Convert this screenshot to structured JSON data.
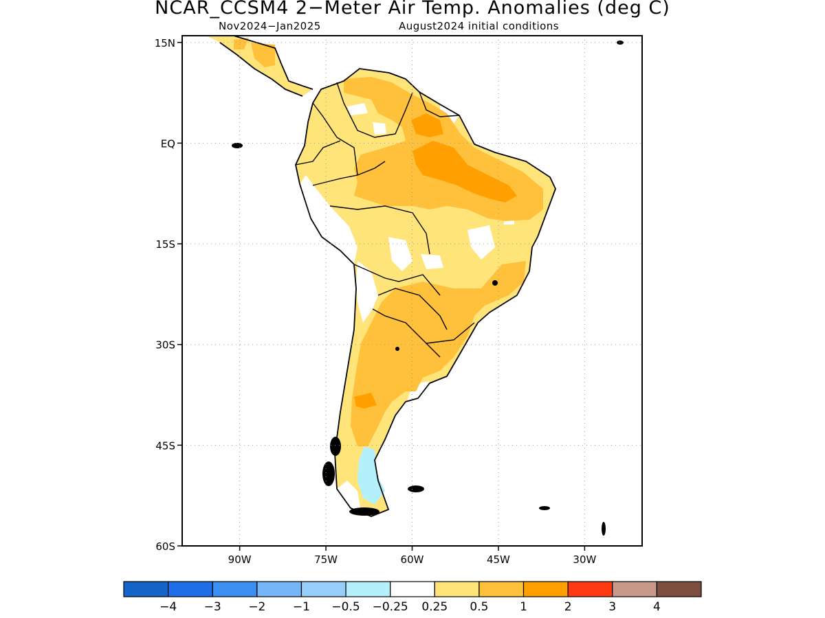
{
  "title": "NCAR_CCSM4 2−Meter Air Temp. Anomalies (deg C)",
  "subtitle_left": "Nov2024−Jan2025",
  "subtitle_right": "August2024 initial conditions",
  "lat_ticks": [
    {
      "value": 15,
      "label": "15N"
    },
    {
      "value": 0,
      "label": "EQ"
    },
    {
      "value": -15,
      "label": "15S"
    },
    {
      "value": -30,
      "label": "30S"
    },
    {
      "value": -45,
      "label": "45S"
    },
    {
      "value": -60,
      "label": "60S"
    }
  ],
  "lon_ticks": [
    {
      "value": -90,
      "label": "90W"
    },
    {
      "value": -75,
      "label": "75W"
    },
    {
      "value": -60,
      "label": "60W"
    },
    {
      "value": -45,
      "label": "45W"
    },
    {
      "value": -30,
      "label": "30W"
    }
  ],
  "lon_range": [
    -100,
    -20
  ],
  "lat_range": [
    -60,
    16
  ],
  "grid": "dotted",
  "colorbar": {
    "colors": [
      "#1565c8",
      "#1f6ee8",
      "#3c8ff0",
      "#76b5f7",
      "#96cdf9",
      "#b3f0fb",
      "#ffffff",
      "#ffe47a",
      "#ffc03c",
      "#ffa000",
      "#ff3a12",
      "#c8988b",
      "#7d4e3f"
    ],
    "labels": [
      "−4",
      "−3",
      "−2",
      "−1",
      "−0.5",
      "−0.25",
      "0.25",
      "0.5",
      "1",
      "2",
      "3",
      "4"
    ]
  }
}
